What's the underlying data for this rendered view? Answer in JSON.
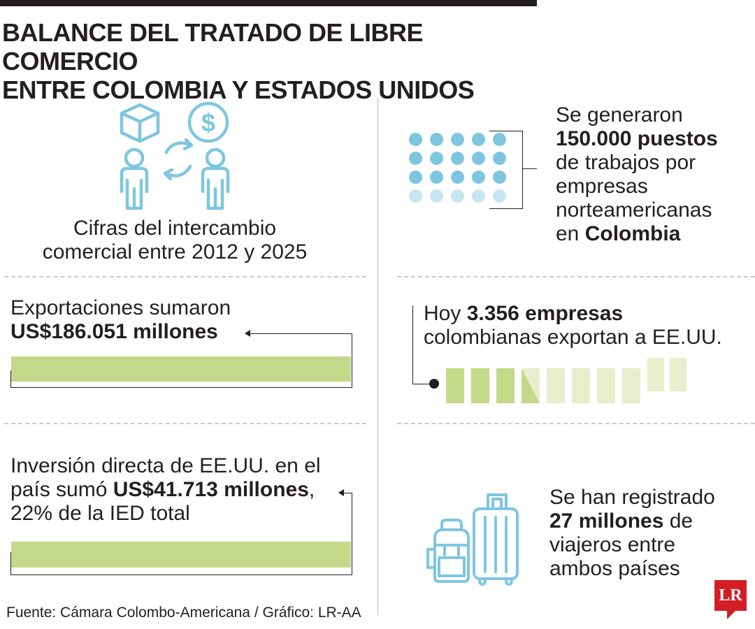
{
  "title": {
    "line1": "BALANCE DEL TRATADO DE LIBRE COMERCIO",
    "line2": "ENTRE COLOMBIA Y ESTADOS UNIDOS"
  },
  "intro": {
    "line1": "Cifras del intercambio",
    "line2": "comercial entre 2012 y 2025",
    "icon": "trade-exchange-icon"
  },
  "exports": {
    "line1": "Exportaciones sumaron",
    "value": "US$186.051 millones"
  },
  "investment": {
    "line1": "Inversión directa de EE.UU. en el",
    "line2_prefix": "país sumó ",
    "value": "US$41.713 millones",
    "line2_suffix": ",",
    "line3": "22% de la IED total"
  },
  "jobs": {
    "line1": "Se generaron",
    "value": "150.000 puestos",
    "line3": "de trabajos por",
    "line4": "empresas",
    "line5": "norteamericanas",
    "line6_prefix": "en ",
    "line6_bold": "Colombia"
  },
  "companies": {
    "prefix": "Hoy ",
    "value": "3.356 empresas",
    "line2": "colombianas exportan a EE.UU."
  },
  "travelers": {
    "line1": "Se han registrado",
    "value": "27 millones",
    "value_suffix": " de",
    "line3": "viajeros entre",
    "line4": "ambos países",
    "icon": "luggage-icon"
  },
  "source": "Fuente: Cámara Colombo-Americana / Gráfico: LR-AA",
  "logo": "LR",
  "colors": {
    "accent_green": "#c4d88a",
    "light_green": "#e6eecb",
    "icon_blue": "#7ec6df",
    "light_blue": "#c7e6f1",
    "logo_red": "#d21f26"
  }
}
